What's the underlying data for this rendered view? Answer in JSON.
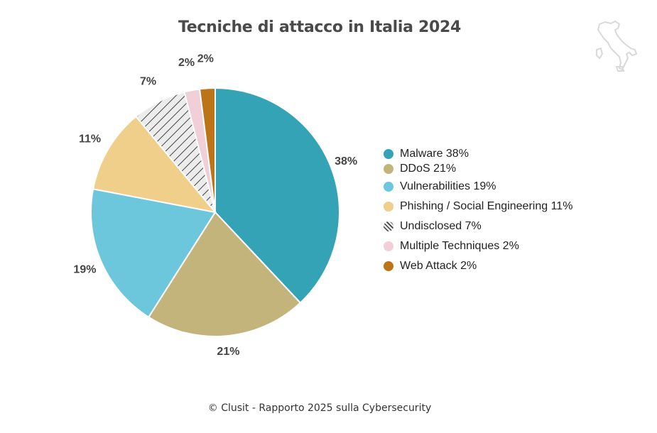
{
  "header": {
    "title": "Tecniche di attacco in Italia 2024"
  },
  "footer": {
    "text": "© Clusit - Rapporto 2025 sulla Cybersecurity"
  },
  "logo": {
    "icon": "italy-map-icon",
    "color": "#d9d9d9"
  },
  "chart_data": {
    "type": "pie",
    "title": "Tecniche di attacco in Italia 2024",
    "start_angle": "12 o'clock",
    "direction": "clockwise",
    "legend_position": "right",
    "slices": [
      {
        "label": "Malware",
        "value": 38,
        "display": "38%",
        "legend": "Malware 38%",
        "color": "#33a3b5",
        "pattern": "solid"
      },
      {
        "label": "DDoS",
        "value": 21,
        "display": "21%",
        "legend": "DDoS 21%",
        "color": "#c3b47c",
        "pattern": "solid"
      },
      {
        "label": "Vulnerabilities",
        "value": 19,
        "display": "19%",
        "legend": "Vulnerabilities 19%",
        "color": "#6cc6dc",
        "pattern": "solid"
      },
      {
        "label": "Phishing / Social Engineering",
        "value": 11,
        "display": "11%",
        "legend": "Phishing / Social Engineering 11%",
        "color": "#f0cf8a",
        "pattern": "solid"
      },
      {
        "label": "Undisclosed",
        "value": 7,
        "display": "7%",
        "legend": "Undisclosed 7%",
        "color": "#e6e6e6",
        "pattern": "diagonal-hatch"
      },
      {
        "label": "Multiple Techniques",
        "value": 2,
        "display": "2%",
        "legend": "Multiple Techniques 2%",
        "color": "#f0cfd9",
        "pattern": "solid"
      },
      {
        "label": "Web Attack",
        "value": 2,
        "display": "2%",
        "legend": "Web Attack 2%",
        "color": "#bd7418",
        "pattern": "solid"
      }
    ]
  }
}
